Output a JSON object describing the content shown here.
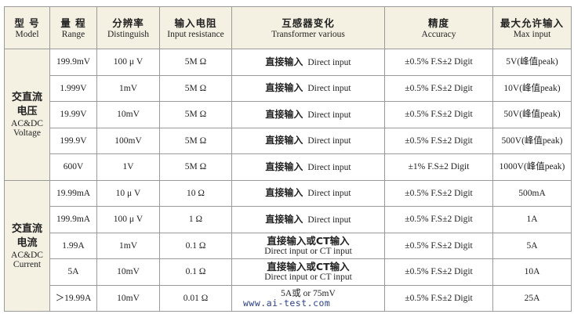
{
  "headers": [
    {
      "zh": "型 号",
      "en": "Model"
    },
    {
      "zh": "量 程",
      "en": "Range"
    },
    {
      "zh": "分辨率",
      "en": "Distinguish"
    },
    {
      "zh": "输入电阻",
      "en": "Input resistance"
    },
    {
      "zh": "互感器变化",
      "en": "Transformer various"
    },
    {
      "zh": "精度",
      "en": "Accuracy"
    },
    {
      "zh": "最大允许输入",
      "en": "Max input"
    }
  ],
  "groups": [
    {
      "model_zh": [
        "交直流",
        "电压"
      ],
      "model_en": [
        "AC&DC",
        "Voltage"
      ],
      "rows": [
        {
          "range": "199.9mV",
          "res": "100 μ V",
          "input_r": "5M Ω",
          "trans_zh": "直接输入",
          "trans_en": "Direct input",
          "acc": "±0.5% F.S±2 Digit",
          "max": "5V(峰值peak)"
        },
        {
          "range": "1.999V",
          "res": "1mV",
          "input_r": "5M Ω",
          "trans_zh": "直接输入",
          "trans_en": "Direct input",
          "acc": "±0.5% F.S±2 Digit",
          "max": "10V(峰值peak)"
        },
        {
          "range": "19.99V",
          "res": "10mV",
          "input_r": "5M Ω",
          "trans_zh": "直接输入",
          "trans_en": "Direct input",
          "acc": "±0.5% F.S±2 Digit",
          "max": "50V(峰值peak)"
        },
        {
          "range": "199.9V",
          "res": "100mV",
          "input_r": "5M Ω",
          "trans_zh": "直接输入",
          "trans_en": "Direct input",
          "acc": "±0.5% F.S±2 Digit",
          "max": "500V(峰值peak)"
        },
        {
          "range": "600V",
          "res": "1V",
          "input_r": "5M Ω",
          "trans_zh": "直接输入",
          "trans_en": "Direct input",
          "acc": "±1% F.S±2 Digit",
          "max": "1000V(峰值peak)"
        }
      ]
    },
    {
      "model_zh": [
        "交直流",
        "电流"
      ],
      "model_en": [
        "AC&DC",
        "Current"
      ],
      "rows": [
        {
          "range": "19.99mA",
          "res": "10 μ V",
          "input_r": "10 Ω",
          "trans_zh": "直接输入",
          "trans_en": "Direct input",
          "acc": "±0.5% F.S±2 Digit",
          "max": "500mA"
        },
        {
          "range": "199.9mA",
          "res": "100 μ V",
          "input_r": "1 Ω",
          "trans_zh": "直接输入",
          "trans_en": "Direct input",
          "acc": "±0.5% F.S±2 Digit",
          "max": "1A"
        },
        {
          "range": "1.99A",
          "res": "1mV",
          "input_r": "0.1 Ω",
          "trans_zh": "直接输入或CT输入",
          "trans_en": "Direct input or CT input",
          "acc": "±0.5% F.S±2 Digit",
          "max": "5A",
          "stacked": true
        },
        {
          "range": "5A",
          "res": "10mV",
          "input_r": "0.1 Ω",
          "trans_zh": "直接输入或CT输入",
          "trans_en": "Direct input or CT input",
          "acc": "±0.5% F.S±2 Digit",
          "max": "10A",
          "stacked": true
        },
        {
          "range": "＞19.99A",
          "res": "10mV",
          "input_r": "0.01 Ω",
          "trans_zh": "",
          "trans_en": "5A或 or 75mV",
          "acc": "±0.5% F.S±2 Digit",
          "max": "25A"
        }
      ]
    }
  ],
  "watermark": "www.ai-test.com"
}
